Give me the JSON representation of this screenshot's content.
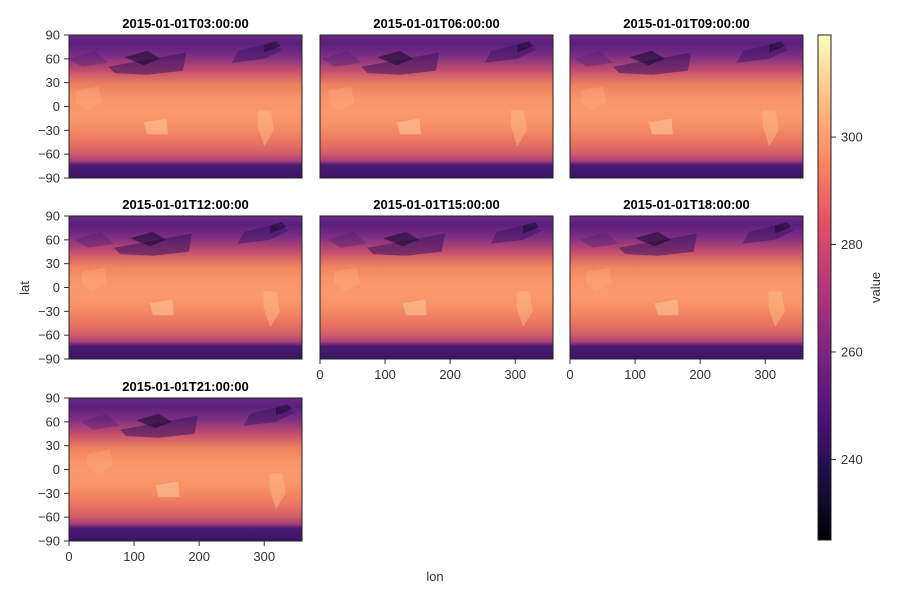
{
  "chart_data": {
    "type": "heatmap",
    "layout": "small-multiples 3x3 grid (7 panels)",
    "xlabel": "lon",
    "ylabel": "lat",
    "xlim": [
      0,
      358
    ],
    "ylim": [
      -90,
      90
    ],
    "x_ticks": [
      0,
      100,
      200,
      300
    ],
    "y_ticks": [
      90,
      60,
      30,
      0,
      -30,
      -60,
      -90
    ],
    "colormap": "magma",
    "colorbar": {
      "label": "value",
      "range": [
        225,
        319
      ],
      "ticks": [
        240,
        260,
        280,
        300
      ]
    },
    "panels": [
      {
        "title": "2015-01-01T03:00:00",
        "row": 0,
        "col": 0
      },
      {
        "title": "2015-01-01T06:00:00",
        "row": 0,
        "col": 1
      },
      {
        "title": "2015-01-01T09:00:00",
        "row": 0,
        "col": 2
      },
      {
        "title": "2015-01-01T12:00:00",
        "row": 1,
        "col": 0
      },
      {
        "title": "2015-01-01T15:00:00",
        "row": 1,
        "col": 1
      },
      {
        "title": "2015-01-01T18:00:00",
        "row": 1,
        "col": 2
      },
      {
        "title": "2015-01-01T21:00:00",
        "row": 2,
        "col": 0
      }
    ]
  }
}
